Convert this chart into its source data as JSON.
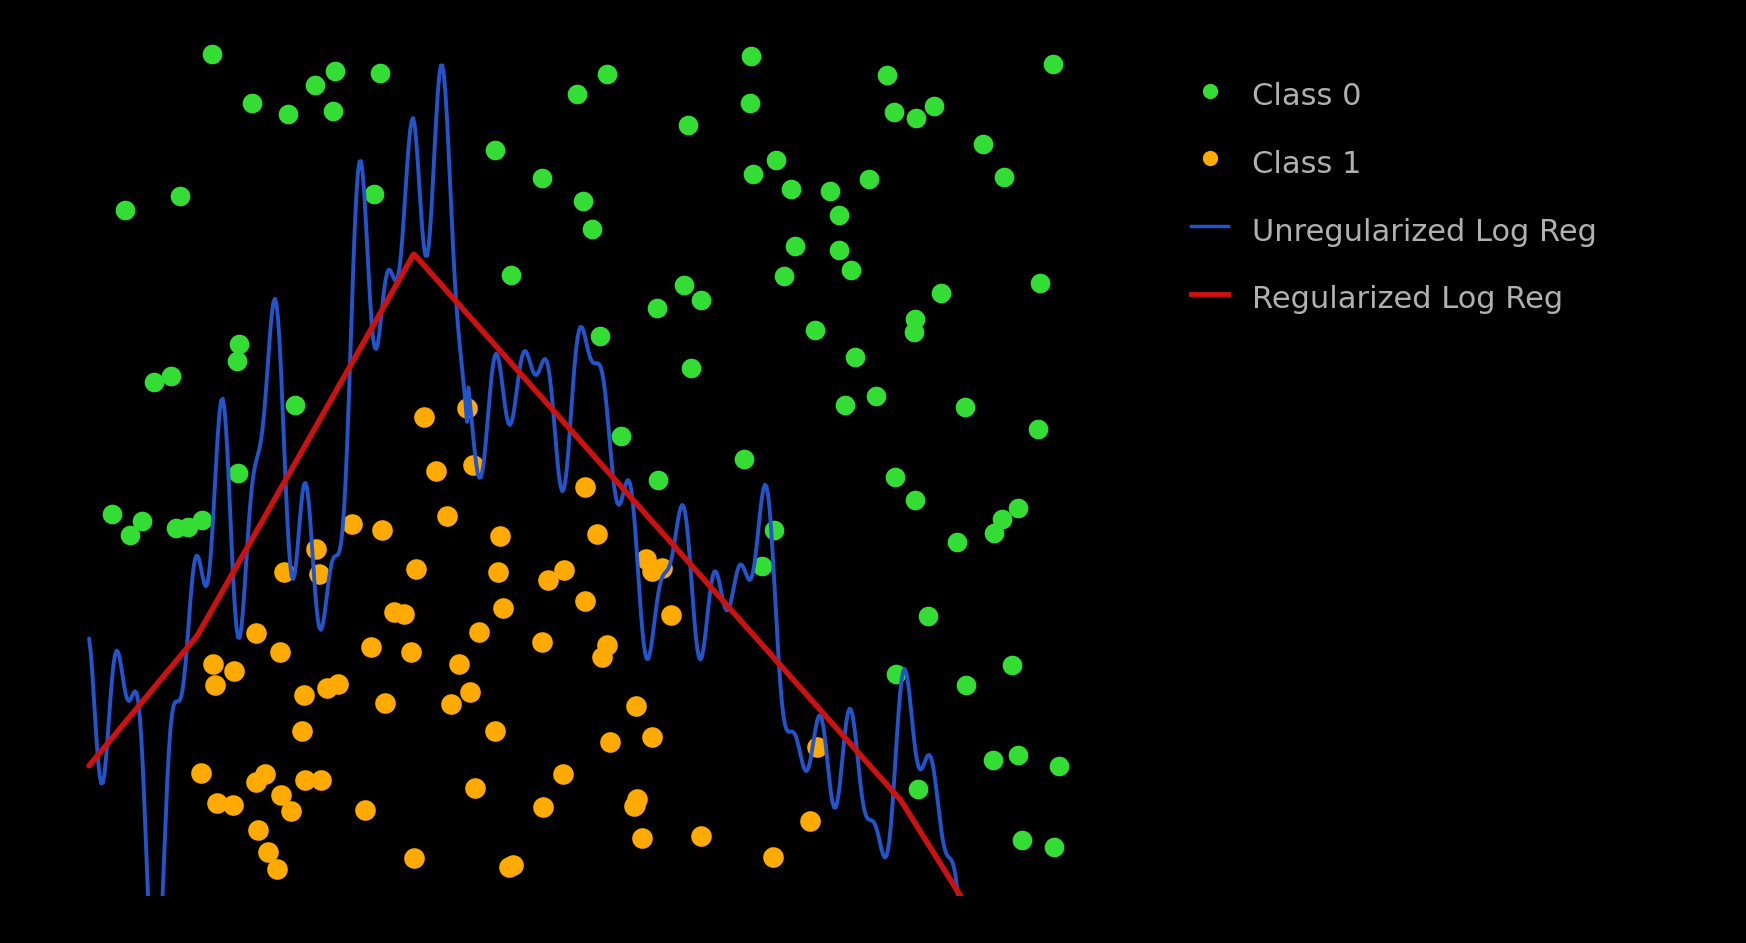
{
  "background_color": "#000000",
  "text_color": "#b0b0b0",
  "class0_color": "#33dd33",
  "class1_color": "#ffaa00",
  "unreg_color": "#2255cc",
  "reg_color": "#cc1111",
  "legend_labels": [
    "Class 0",
    "Class 1",
    "Unregularized Log Reg",
    "Regularized Log Reg"
  ],
  "figsize": [
    17.46,
    9.43
  ],
  "dpi": 100,
  "plot_xlim": [
    0,
    10
  ],
  "plot_ylim": [
    0,
    10
  ]
}
